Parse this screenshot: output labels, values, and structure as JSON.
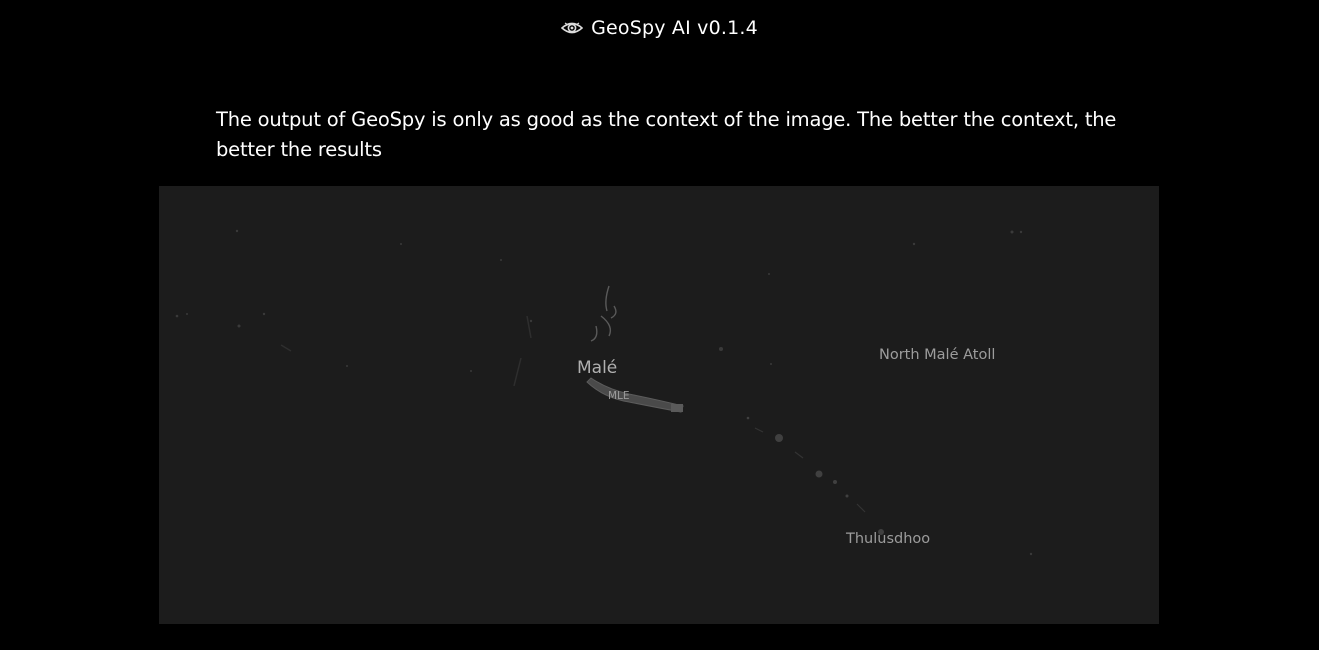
{
  "header": {
    "title": "GeoSpy AI v0.1.4",
    "logo_icon": "eye-icon"
  },
  "notice": {
    "text": "The output of GeoSpy is only as good as the context of the image. The better the context, the better the results"
  },
  "map": {
    "background": "#1c1c1c",
    "labels": {
      "capital": "Malé",
      "airport_code": "MLE",
      "atoll": "North Malé Atoll",
      "island": "Thulusdhoo"
    }
  }
}
